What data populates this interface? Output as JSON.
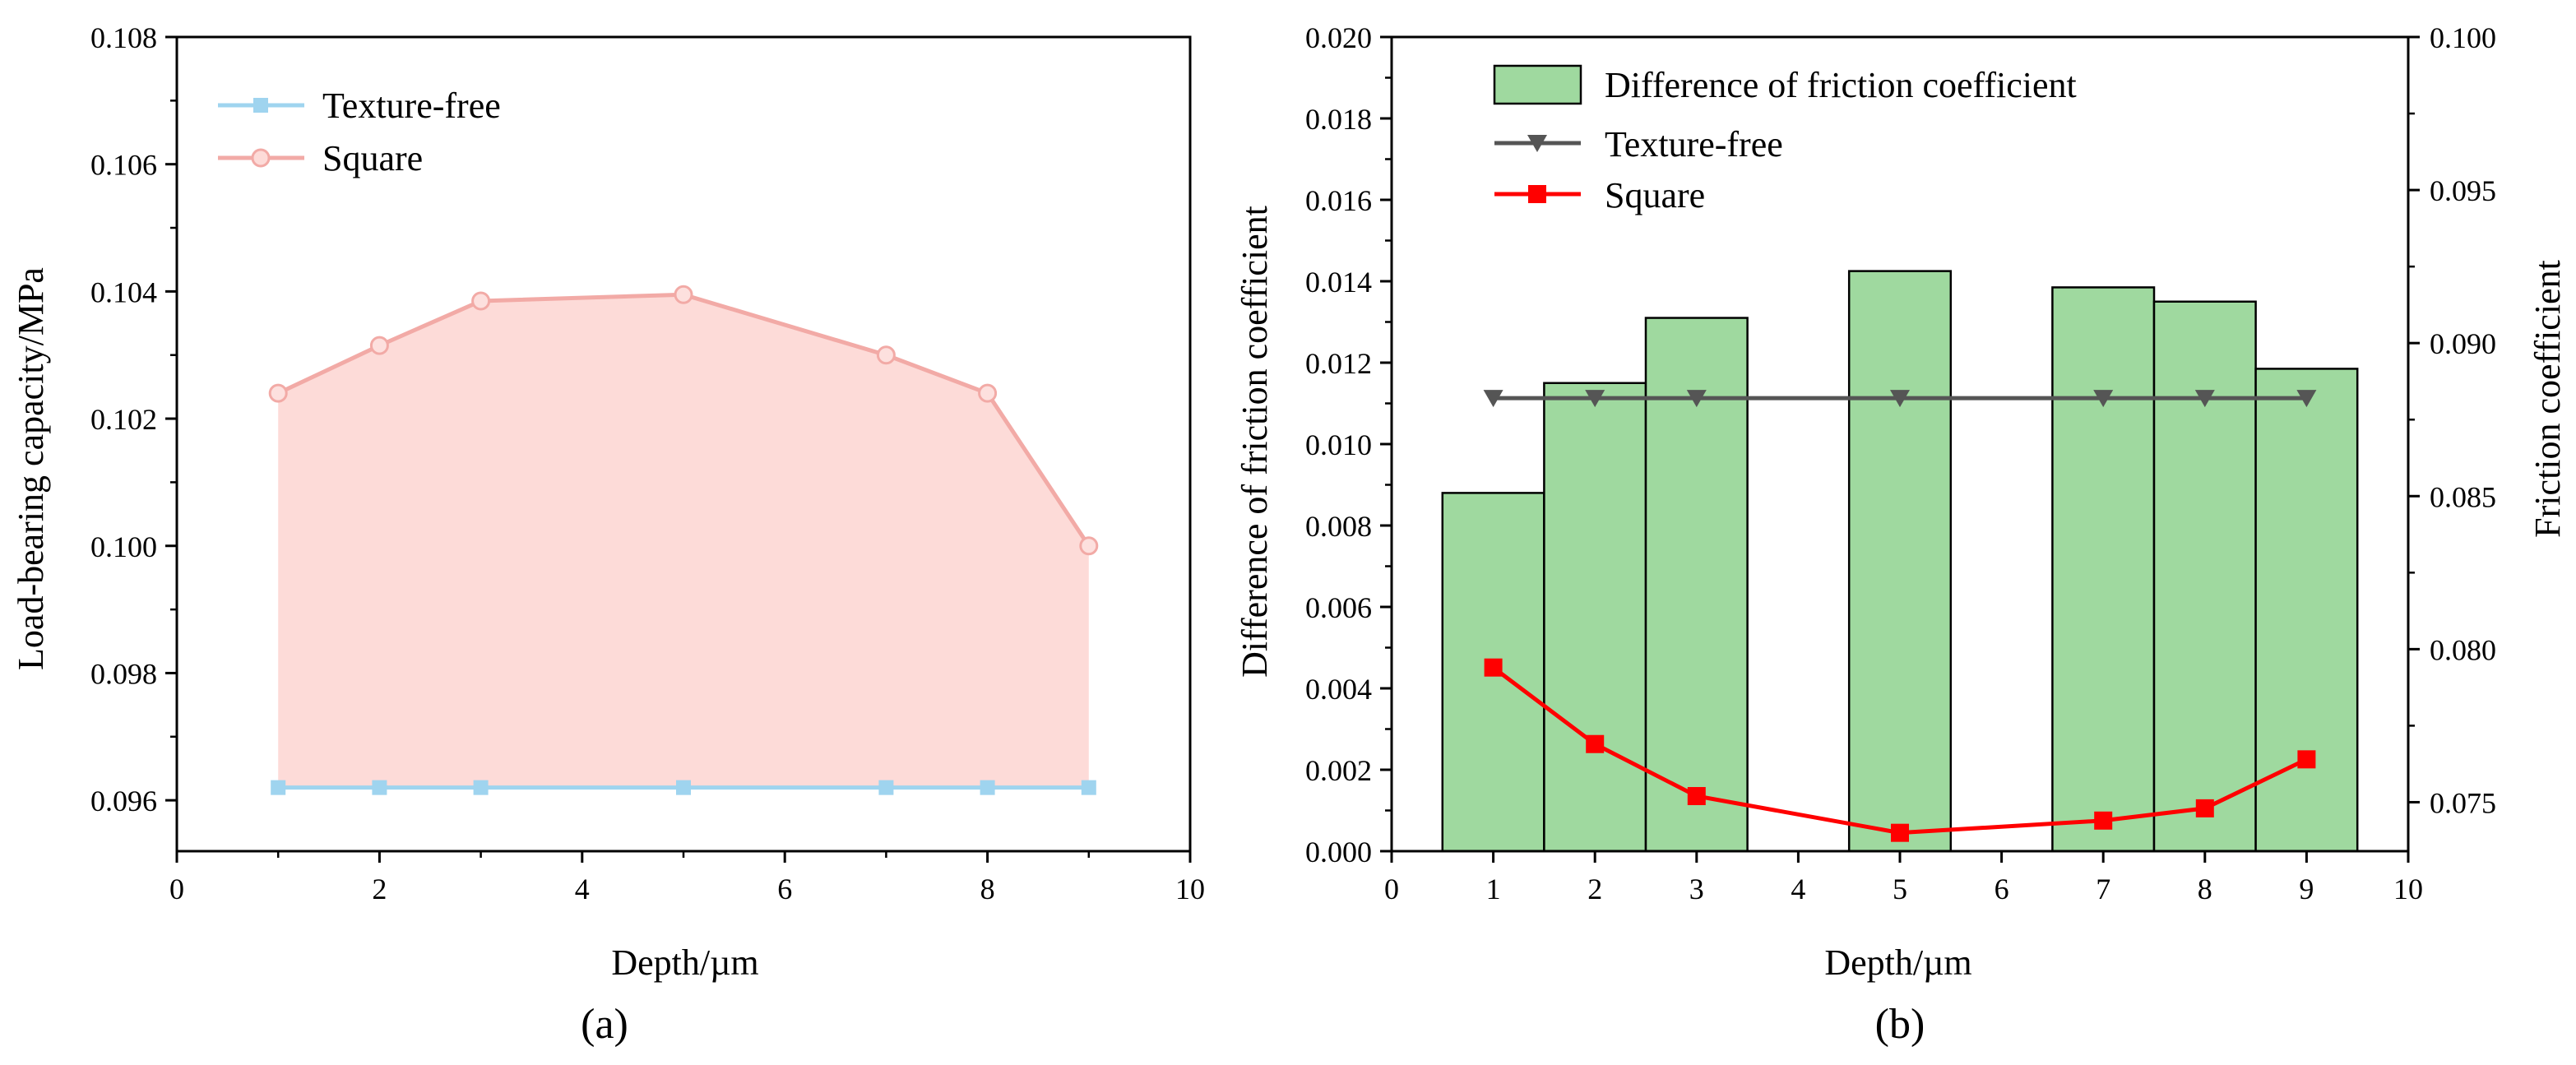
{
  "chart_data": [
    {
      "id": "a",
      "type": "area",
      "caption": "(a)",
      "xlabel": "Depth/µm",
      "ylabel": "Load-bearing capacity/MPa",
      "xlim": [
        0,
        10
      ],
      "ylim": [
        0.0952,
        0.108
      ],
      "xticks": [
        0,
        2,
        4,
        6,
        8,
        10
      ],
      "xtick_labels": [
        "0",
        "2",
        "4",
        "6",
        "8",
        "10"
      ],
      "yticks": [
        0.096,
        0.098,
        0.1,
        0.102,
        0.104,
        0.106,
        0.108
      ],
      "ytick_labels": [
        "0.096",
        "0.098",
        "0.100",
        "0.102",
        "0.104",
        "0.106",
        "0.108"
      ],
      "legend_position": "top-left",
      "series": [
        {
          "name": "Texture-free",
          "color": "#9fd4ef",
          "marker": "square",
          "x": [
            1,
            2,
            3,
            5,
            7,
            8,
            9
          ],
          "values": [
            0.0962,
            0.0962,
            0.0962,
            0.0962,
            0.0962,
            0.0962,
            0.0962
          ]
        },
        {
          "name": "Square",
          "color": "#f2aaa6",
          "fill": "#fddbd8",
          "marker": "circle",
          "x": [
            1,
            2,
            3,
            5,
            7,
            8,
            9
          ],
          "values": [
            0.1024,
            0.10315,
            0.10385,
            0.10395,
            0.103,
            0.1024,
            0.1
          ]
        }
      ]
    },
    {
      "id": "b",
      "type": "bar+line",
      "caption": "(b)",
      "xlabel": "Depth/µm",
      "ylabel": "Difference of friction coefficient",
      "ylabel_right": "Friction coefficient",
      "xlim": [
        0,
        10
      ],
      "ylim": [
        0,
        0.02
      ],
      "ylim_right": [
        0.0734,
        0.1
      ],
      "xticks": [
        0,
        1,
        2,
        3,
        4,
        5,
        6,
        7,
        8,
        9,
        10
      ],
      "xtick_labels": [
        "0",
        "1",
        "2",
        "3",
        "4",
        "5",
        "6",
        "7",
        "8",
        "9",
        "10"
      ],
      "yticks": [
        0,
        0.002,
        0.004,
        0.006,
        0.008,
        0.01,
        0.012,
        0.014,
        0.016,
        0.018,
        0.02
      ],
      "ytick_labels": [
        "0.000",
        "0.002",
        "0.004",
        "0.006",
        "0.008",
        "0.010",
        "0.012",
        "0.014",
        "0.016",
        "0.018",
        "0.020"
      ],
      "yticks_right": [
        0.075,
        0.08,
        0.085,
        0.09,
        0.095,
        0.1
      ],
      "ytick_labels_right": [
        "0.075",
        "0.080",
        "0.085",
        "0.090",
        "0.095",
        "0.100"
      ],
      "legend_position": "top-center",
      "bars": {
        "name": "Difference of friction coefficient",
        "color": "#9fd99f",
        "x": [
          1,
          2,
          3,
          5,
          7,
          8,
          9
        ],
        "values": [
          0.0088,
          0.0115,
          0.0131,
          0.01425,
          0.01385,
          0.0135,
          0.01185
        ]
      },
      "series": [
        {
          "name": "Texture-free",
          "color": "#555555",
          "marker": "triangle-down",
          "axis": "right",
          "x": [
            1,
            2,
            3,
            5,
            7,
            8,
            9
          ],
          "values": [
            0.0882,
            0.0882,
            0.0882,
            0.0882,
            0.0882,
            0.0882,
            0.0882
          ]
        },
        {
          "name": "Square",
          "color": "#ff0000",
          "marker": "square",
          "axis": "right",
          "x": [
            1,
            2,
            3,
            5,
            7,
            8,
            9
          ],
          "values": [
            0.0794,
            0.0769,
            0.0752,
            0.074,
            0.0744,
            0.0748,
            0.0764
          ]
        }
      ]
    }
  ]
}
